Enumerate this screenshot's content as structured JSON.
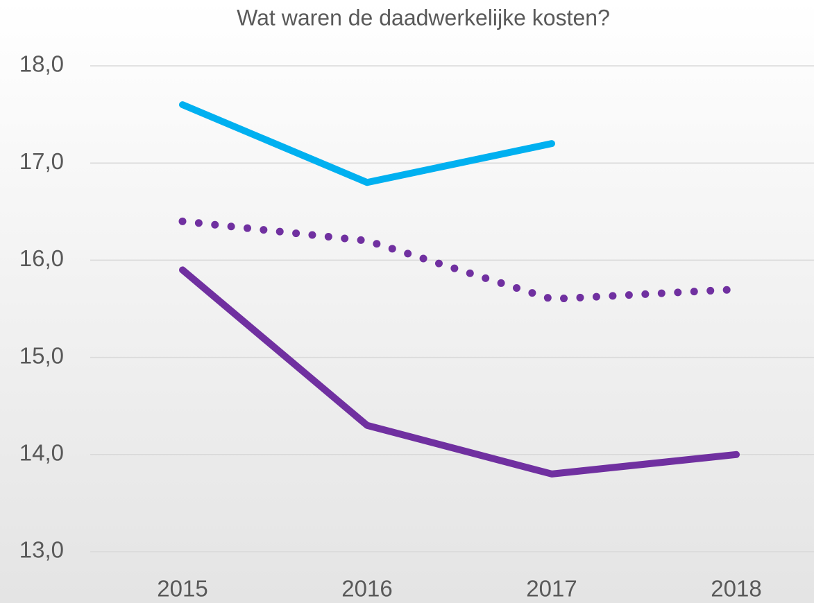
{
  "chart_data": {
    "type": "line",
    "title": "Wat waren de daadwerkelijke kosten?",
    "categories": [
      "2015",
      "2016",
      "2017",
      "2018"
    ],
    "series": [
      {
        "color": "#00b0f0",
        "line_style": "solid",
        "values": [
          17.6,
          16.8,
          17.2,
          null
        ]
      },
      {
        "color": "#7030a0",
        "line_style": "dotted",
        "values": [
          16.4,
          16.2,
          15.6,
          15.7
        ]
      },
      {
        "color": "#7030a0",
        "line_style": "solid",
        "values": [
          15.9,
          14.3,
          13.8,
          14.0
        ]
      }
    ],
    "ylim": [
      13,
      18
    ],
    "yticks": [
      {
        "value": 13,
        "label": "13,0"
      },
      {
        "value": 14,
        "label": "14,0"
      },
      {
        "value": 15,
        "label": "15,0"
      },
      {
        "value": 16,
        "label": "16,0"
      },
      {
        "value": 17,
        "label": "17,0"
      },
      {
        "value": 18,
        "label": "18,0"
      }
    ],
    "grid": true
  }
}
